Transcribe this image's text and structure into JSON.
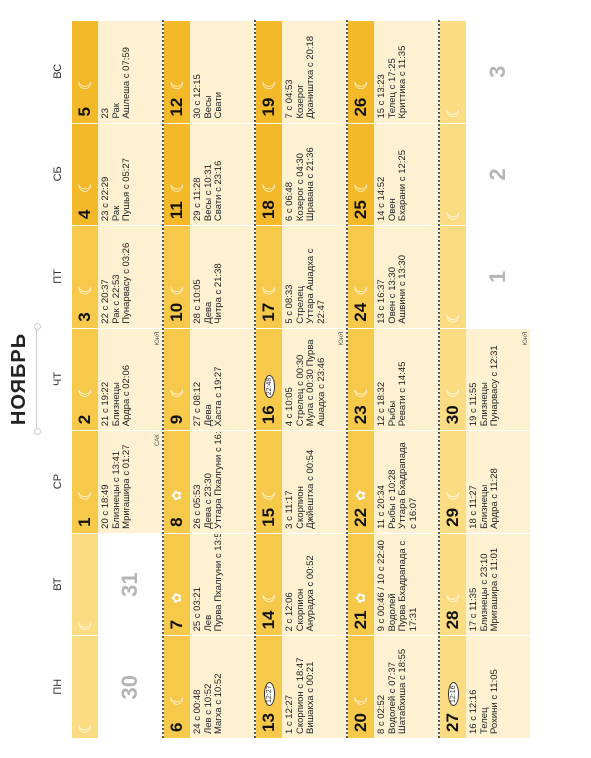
{
  "title": "НОЯБРЬ",
  "weekdays": [
    "ПН",
    "ВТ",
    "СР",
    "ЧТ",
    "ПТ",
    "СБ",
    "ВС"
  ],
  "colors": {
    "bar_dark": "#f4b928",
    "bar_mid": "#f7c94a",
    "bar_light": "#fbdc82",
    "cell_bg": "#fdf1d2"
  },
  "weeks": [
    [
      {
        "day": "30",
        "other_month": true,
        "bar": "#fbdc82",
        "lines": []
      },
      {
        "day": "31",
        "other_month": true,
        "bar": "#fbdc82",
        "lines": []
      },
      {
        "day": "1",
        "bar": "#f7c94a",
        "icon": "moon",
        "lines": [
          "20 с 18:49",
          "Близнецы с 13:41",
          "Мригашира с 01:27"
        ],
        "note": "САК"
      },
      {
        "day": "2",
        "bar": "#f7c94a",
        "icon": "moon",
        "lines": [
          "21 с 19:22",
          "Близнецы",
          "Ардра с 02:06"
        ],
        "note": "ЮнЯ"
      },
      {
        "day": "3",
        "bar": "#f7c94a",
        "icon": "moon",
        "lines": [
          "22 с 20:37",
          "Рак с 22:53",
          "Пунарвасу с 03:26"
        ]
      },
      {
        "day": "4",
        "bar": "#f4b928",
        "icon": "moon",
        "lines": [
          "23 с 22:29",
          "Рак",
          "Пушья с 05:27"
        ]
      },
      {
        "day": "5",
        "bar": "#f4b928",
        "icon": "moon",
        "lines": [
          "23",
          "Рак",
          "Ашлеша с 07:59"
        ]
      }
    ],
    [
      {
        "day": "6",
        "bar": "#f7c94a",
        "icon": "moon",
        "lines": [
          "24 с 00:48",
          "Лев с 10:52",
          "Магха с 10:52"
        ]
      },
      {
        "day": "7",
        "bar": "#f7c94a",
        "icon": "sun",
        "lines": [
          "25 с 03:21",
          "Лев",
          "Пурва Пхалгуни с 13:53"
        ]
      },
      {
        "day": "8",
        "bar": "#f7c94a",
        "icon": "sun",
        "lines": [
          "26 с 05:53",
          "Дева с 23:30",
          "Уттара Пхалгуни с 16:49"
        ]
      },
      {
        "day": "9",
        "bar": "#f7c94a",
        "icon": "moon",
        "lines": [
          "27 с 08:12",
          "Дева",
          "Хаста с 19:27"
        ]
      },
      {
        "day": "10",
        "bar": "#f7c94a",
        "icon": "moon",
        "lines": [
          "28 с 10:05",
          "Дева",
          "Читра с 21:38"
        ]
      },
      {
        "day": "11",
        "bar": "#f4b928",
        "icon": "moon",
        "lines": [
          "29 с 11:28",
          "Весы с 10:31",
          "Свати с 23:16"
        ]
      },
      {
        "day": "12",
        "bar": "#f4b928",
        "icon": "moon",
        "lines": [
          "30 с 12:15",
          "Весы",
          "Свати"
        ]
      }
    ],
    [
      {
        "day": "13",
        "bar": "#f7c94a",
        "icon": "badge",
        "badge": "12:27",
        "lines": [
          "1 с 12:27",
          "Скорпион с 18:47",
          "Вишакха с 00:21"
        ]
      },
      {
        "day": "14",
        "bar": "#f7c94a",
        "icon": "moon",
        "lines": [
          "2 с 12:06",
          "Скорпион",
          "Анурадха с 00:52"
        ]
      },
      {
        "day": "15",
        "bar": "#f7c94a",
        "icon": "moon",
        "lines": [
          "3 с 11:17",
          "Скорпион",
          "Джйештха с 00:54"
        ]
      },
      {
        "day": "16",
        "bar": "#f7c94a",
        "icon": "badge",
        "badge": "22:48",
        "lines": [
          "4 с 10:05",
          "Стрелец с 00:30",
          "Мула с 00:30 Пурва",
          "Ашадха с 23:46"
        ],
        "note": "ЮнЯ"
      },
      {
        "day": "17",
        "bar": "#f7c94a",
        "icon": "moon",
        "lines": [
          "5 с 08:33",
          "Стрелец",
          "Уттара Ашадха с",
          "22:47"
        ]
      },
      {
        "day": "18",
        "bar": "#f4b928",
        "icon": "moon",
        "lines": [
          "6 с 06:48",
          "Козерог с 04:30",
          "Шравана с 21:36"
        ]
      },
      {
        "day": "19",
        "bar": "#f4b928",
        "icon": "moon",
        "lines": [
          "7 с 04:53",
          "Козерог",
          "Дхаништха с 20:18"
        ]
      }
    ],
    [
      {
        "day": "20",
        "bar": "#f7c94a",
        "icon": "moon",
        "lines": [
          "8 с 02:52",
          "Водолей с 07:37",
          "Шатабхиша с 18:55"
        ]
      },
      {
        "day": "21",
        "bar": "#f7c94a",
        "icon": "sun",
        "lines": [
          "9 с 00:46 / 10 с 22:40",
          "Водолей",
          "Пурва Бхадрапада с",
          "17:31"
        ]
      },
      {
        "day": "22",
        "bar": "#f7c94a",
        "icon": "sun",
        "lines": [
          "11 с 20:34",
          "Рыбы с 10:28",
          "Уттара Бхадрапада",
          "с 16:07"
        ]
      },
      {
        "day": "23",
        "bar": "#f7c94a",
        "icon": "moon",
        "lines": [
          "12 с 18:32",
          "Рыбы",
          "Ревати с 14:45"
        ]
      },
      {
        "day": "24",
        "bar": "#f7c94a",
        "icon": "moon",
        "lines": [
          "13 с 16:37",
          "Овен с 13:30",
          "Ашвини с 13:30"
        ]
      },
      {
        "day": "25",
        "bar": "#f4b928",
        "icon": "moon",
        "lines": [
          "14 с 14:52",
          "Овен",
          "Бхарани с 12:25"
        ]
      },
      {
        "day": "26",
        "bar": "#f4b928",
        "icon": "moon",
        "lines": []
      }
    ],
    [
      {
        "day": "27",
        "bar": "#fbdc82",
        "icon": "badge",
        "badge": "12:16",
        "lines": [
          "16 с 12:16",
          "Телец",
          "Рохини с 11:05"
        ]
      },
      {
        "day": "28",
        "bar": "#fbdc82",
        "icon": "moon",
        "lines": [
          "17 с 11:35",
          "Близнецы с 23:10",
          "Мригашира с 11:01"
        ]
      },
      {
        "day": "29",
        "bar": "#fbdc82",
        "icon": "moon",
        "lines": [
          "18 с 11:27",
          "Близнецы",
          "Ардра с 11:28"
        ]
      },
      {
        "day": "30",
        "bar": "#fbdc82",
        "icon": "moon",
        "lines": [
          "19 с 11:55",
          "Близнецы",
          "Пунарвасу с 12:31"
        ],
        "note": "ЮнЯ"
      },
      {
        "day": "1",
        "other_month": true,
        "bar": "#fbdc82",
        "lines": []
      },
      {
        "day": "2",
        "other_month": true,
        "bar": "#fbdc82",
        "lines": []
      },
      {
        "day": "3",
        "other_month": true,
        "bar": "#fbdc82",
        "icon": "moon",
        "lines": []
      }
    ]
  ],
  "week5_extra": {
    "day26_info": [
      "15 с 13:23",
      "Телец с 17:25",
      "Криттика с 11:35"
    ]
  }
}
